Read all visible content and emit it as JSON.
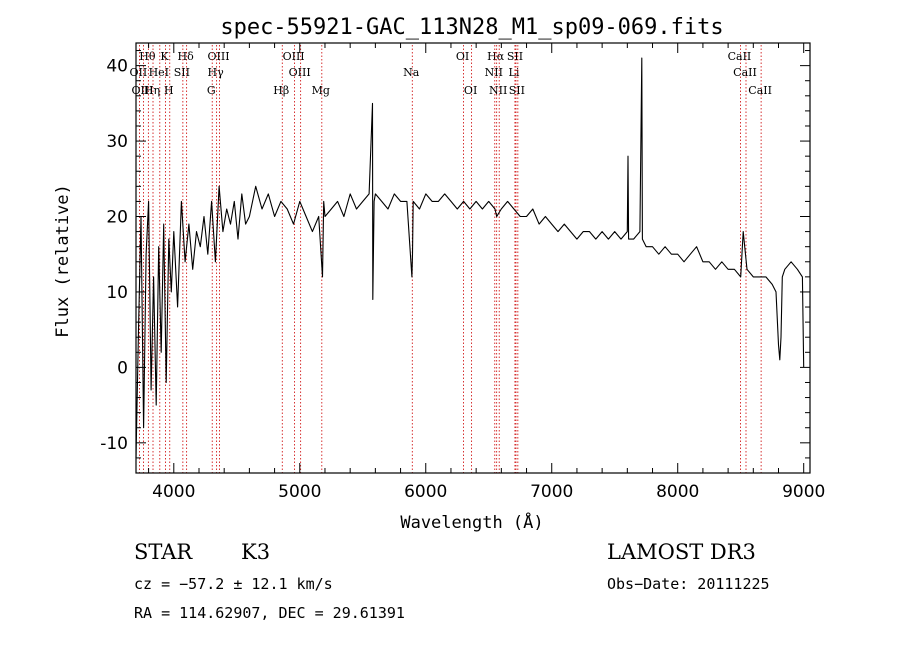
{
  "chart_data": {
    "type": "line",
    "title": "spec-55921-GAC_113N28_M1_sp09-069.fits",
    "xlabel": "Wavelength (Å)",
    "ylabel": "Flux (relative)",
    "xlim": [
      3700,
      9050
    ],
    "ylim": [
      -14,
      43
    ],
    "xticks": [
      4000,
      5000,
      6000,
      7000,
      8000,
      9000
    ],
    "yticks": [
      -10,
      0,
      10,
      20,
      30,
      40
    ],
    "series": [
      {
        "name": "spectrum",
        "x": [
          3700,
          3720,
          3740,
          3760,
          3780,
          3800,
          3820,
          3840,
          3860,
          3880,
          3900,
          3920,
          3940,
          3960,
          3980,
          4000,
          4030,
          4060,
          4090,
          4120,
          4150,
          4180,
          4210,
          4240,
          4270,
          4300,
          4330,
          4360,
          4390,
          4420,
          4450,
          4480,
          4510,
          4540,
          4570,
          4600,
          4650,
          4700,
          4750,
          4800,
          4850,
          4900,
          4950,
          5000,
          5050,
          5100,
          5150,
          5180,
          5190,
          5200,
          5250,
          5300,
          5350,
          5400,
          5450,
          5500,
          5550,
          5577,
          5580,
          5590,
          5600,
          5650,
          5700,
          5750,
          5800,
          5850,
          5890,
          5895,
          5900,
          5950,
          6000,
          6050,
          6100,
          6150,
          6200,
          6250,
          6300,
          6350,
          6400,
          6450,
          6500,
          6550,
          6563,
          6600,
          6650,
          6700,
          6750,
          6800,
          6850,
          6900,
          6950,
          7000,
          7050,
          7100,
          7150,
          7200,
          7250,
          7300,
          7350,
          7400,
          7450,
          7500,
          7550,
          7600,
          7605,
          7610,
          7650,
          7700,
          7715,
          7720,
          7750,
          7800,
          7850,
          7900,
          7950,
          8000,
          8050,
          8100,
          8150,
          8200,
          8250,
          8300,
          8350,
          8400,
          8450,
          8500,
          8520,
          8550,
          8600,
          8650,
          8700,
          8750,
          8780,
          8800,
          8810,
          8820,
          8830,
          8850,
          8900,
          8950,
          8990,
          9000
        ],
        "y": [
          -12,
          5,
          20,
          -8,
          15,
          22,
          -3,
          12,
          -5,
          16,
          2,
          19,
          -2,
          17,
          10,
          18,
          8,
          22,
          14,
          19,
          13,
          18,
          16,
          20,
          15,
          22,
          14,
          24,
          18,
          21,
          19,
          22,
          17,
          23,
          19,
          20,
          24,
          21,
          23,
          20,
          22,
          21,
          19,
          22,
          20,
          18,
          20,
          12,
          22,
          20,
          21,
          22,
          20,
          23,
          21,
          22,
          23,
          35,
          9,
          22,
          23,
          22,
          21,
          23,
          22,
          22,
          12,
          15,
          22,
          21,
          23,
          22,
          22,
          23,
          22,
          21,
          22,
          21,
          22,
          21,
          22,
          21,
          20,
          21,
          22,
          21,
          20,
          20,
          21,
          19,
          20,
          19,
          18,
          19,
          18,
          17,
          18,
          18,
          17,
          18,
          17,
          18,
          17,
          18,
          28,
          17,
          17,
          18,
          41,
          17,
          16,
          16,
          15,
          16,
          15,
          15,
          14,
          15,
          16,
          14,
          14,
          13,
          14,
          13,
          13,
          12,
          18,
          13,
          12,
          12,
          12,
          11,
          10,
          3,
          1,
          4,
          12,
          13,
          14,
          13,
          12,
          0
        ]
      }
    ],
    "spectral_lines": [
      {
        "name": "Hθ",
        "wave": 3798,
        "row": 0
      },
      {
        "name": "K",
        "wave": 3934,
        "row": 0
      },
      {
        "name": "Hδ",
        "wave": 4102,
        "row": 0
      },
      {
        "name": "OIII",
        "wave": 4363,
        "row": 0
      },
      {
        "name": "OIII",
        "wave": 4959,
        "row": 0
      },
      {
        "name": "OI",
        "wave": 6300,
        "row": 0
      },
      {
        "name": "Hα",
        "wave": 6563,
        "row": 0
      },
      {
        "name": "SII",
        "wave": 6716,
        "row": 0
      },
      {
        "name": "CaII",
        "wave": 8498,
        "row": 0
      },
      {
        "name": "OII",
        "wave": 3727,
        "row": 1
      },
      {
        "name": "HeI",
        "wave": 3889,
        "row": 1
      },
      {
        "name": "SII",
        "wave": 4072,
        "row": 1
      },
      {
        "name": "Hγ",
        "wave": 4340,
        "row": 1
      },
      {
        "name": "OIII",
        "wave": 5007,
        "row": 1
      },
      {
        "name": "Na",
        "wave": 5893,
        "row": 1
      },
      {
        "name": "NII",
        "wave": 6548,
        "row": 1
      },
      {
        "name": "Li",
        "wave": 6708,
        "row": 1
      },
      {
        "name": "CaII",
        "wave": 8542,
        "row": 1
      },
      {
        "name": "OIII",
        "wave": 3760,
        "row": 2
      },
      {
        "name": "Hη",
        "wave": 3835,
        "row": 2
      },
      {
        "name": "H",
        "wave": 3968,
        "row": 2
      },
      {
        "name": "G",
        "wave": 4305,
        "row": 2
      },
      {
        "name": "Hβ",
        "wave": 4861,
        "row": 2
      },
      {
        "name": "Mg",
        "wave": 5175,
        "row": 2
      },
      {
        "name": "OI",
        "wave": 6364,
        "row": 2
      },
      {
        "name": "NII",
        "wave": 6583,
        "row": 2
      },
      {
        "name": "SII",
        "wave": 6731,
        "row": 2
      },
      {
        "name": "CaII",
        "wave": 8662,
        "row": 2
      }
    ]
  },
  "info": {
    "class_label": "STAR",
    "subclass": "K3",
    "survey": "LAMOST DR3",
    "cz": "cz = −57.2 ± 12.1 km/s",
    "obs_date": "Obs−Date: 20111225",
    "coords": "RA = 114.62907, DEC =  29.61391"
  },
  "colors": {
    "line": "#000000",
    "marker_lines": "#cc0000",
    "background": "#ffffff"
  }
}
